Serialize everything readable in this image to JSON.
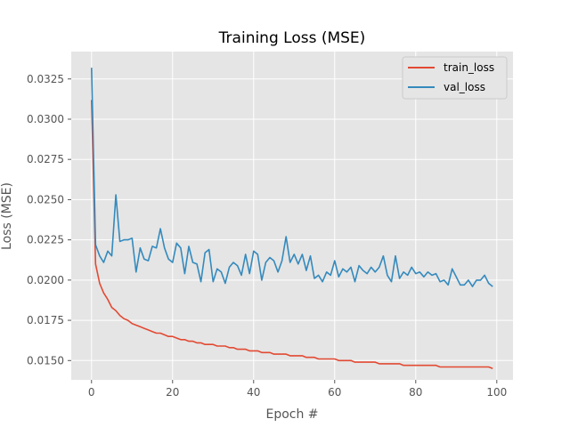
{
  "chart_data": {
    "type": "line",
    "title": "Training Loss (MSE)",
    "xlabel": "Epoch #",
    "ylabel": "Loss (MSE)",
    "xlim": [
      -5,
      104
    ],
    "ylim": [
      0.0138,
      0.0342
    ],
    "xticks": [
      0,
      20,
      40,
      60,
      80,
      100
    ],
    "yticks": [
      0.015,
      0.0175,
      0.02,
      0.0225,
      0.025,
      0.0275,
      0.03,
      0.0325
    ],
    "ytick_labels": [
      "0.0150",
      "0.0175",
      "0.0200",
      "0.0225",
      "0.0250",
      "0.0275",
      "0.0300",
      "0.0325"
    ],
    "grid": true,
    "legend_position": "top-right",
    "background": "#e5e5e5",
    "x": [
      0,
      1,
      2,
      3,
      4,
      5,
      6,
      7,
      8,
      9,
      10,
      11,
      12,
      13,
      14,
      15,
      16,
      17,
      18,
      19,
      20,
      21,
      22,
      23,
      24,
      25,
      26,
      27,
      28,
      29,
      30,
      31,
      32,
      33,
      34,
      35,
      36,
      37,
      38,
      39,
      40,
      41,
      42,
      43,
      44,
      45,
      46,
      47,
      48,
      49,
      50,
      51,
      52,
      53,
      54,
      55,
      56,
      57,
      58,
      59,
      60,
      61,
      62,
      63,
      64,
      65,
      66,
      67,
      68,
      69,
      70,
      71,
      72,
      73,
      74,
      75,
      76,
      77,
      78,
      79,
      80,
      81,
      82,
      83,
      84,
      85,
      86,
      87,
      88,
      89,
      90,
      91,
      92,
      93,
      94,
      95,
      96,
      97,
      98,
      99
    ],
    "series": [
      {
        "name": "train_loss",
        "color": "#e24a33",
        "values": [
          0.0312,
          0.021,
          0.0198,
          0.0192,
          0.0188,
          0.0183,
          0.0181,
          0.0178,
          0.0176,
          0.0175,
          0.0173,
          0.0172,
          0.0171,
          0.017,
          0.0169,
          0.0168,
          0.0167,
          0.0167,
          0.0166,
          0.0165,
          0.0165,
          0.0164,
          0.0163,
          0.0163,
          0.0162,
          0.0162,
          0.0161,
          0.0161,
          0.016,
          0.016,
          0.016,
          0.0159,
          0.0159,
          0.0159,
          0.0158,
          0.0158,
          0.0157,
          0.0157,
          0.0157,
          0.0156,
          0.0156,
          0.0156,
          0.0155,
          0.0155,
          0.0155,
          0.0154,
          0.0154,
          0.0154,
          0.0154,
          0.0153,
          0.0153,
          0.0153,
          0.0153,
          0.0152,
          0.0152,
          0.0152,
          0.0151,
          0.0151,
          0.0151,
          0.0151,
          0.0151,
          0.015,
          0.015,
          0.015,
          0.015,
          0.0149,
          0.0149,
          0.0149,
          0.0149,
          0.0149,
          0.0149,
          0.0148,
          0.0148,
          0.0148,
          0.0148,
          0.0148,
          0.0148,
          0.0147,
          0.0147,
          0.0147,
          0.0147,
          0.0147,
          0.0147,
          0.0147,
          0.0147,
          0.0147,
          0.0146,
          0.0146,
          0.0146,
          0.0146,
          0.0146,
          0.0146,
          0.0146,
          0.0146,
          0.0146,
          0.0146,
          0.0146,
          0.0146,
          0.0146,
          0.0145
        ]
      },
      {
        "name": "val_loss",
        "color": "#348abd",
        "values": [
          0.0332,
          0.0222,
          0.0215,
          0.0211,
          0.0218,
          0.0215,
          0.0253,
          0.0224,
          0.0225,
          0.0225,
          0.0226,
          0.0205,
          0.022,
          0.0213,
          0.0212,
          0.0221,
          0.022,
          0.0232,
          0.022,
          0.0213,
          0.0211,
          0.0223,
          0.022,
          0.0204,
          0.0221,
          0.0211,
          0.021,
          0.0199,
          0.0217,
          0.0219,
          0.0199,
          0.0207,
          0.0205,
          0.0198,
          0.0208,
          0.0211,
          0.0209,
          0.0203,
          0.0216,
          0.0204,
          0.0218,
          0.0216,
          0.02,
          0.0211,
          0.0214,
          0.0212,
          0.0205,
          0.0212,
          0.0227,
          0.0211,
          0.0216,
          0.021,
          0.0216,
          0.0206,
          0.0215,
          0.0201,
          0.0203,
          0.0199,
          0.0205,
          0.0203,
          0.0212,
          0.0202,
          0.0207,
          0.0205,
          0.0208,
          0.0199,
          0.0209,
          0.0206,
          0.0204,
          0.0208,
          0.0205,
          0.0208,
          0.0215,
          0.0203,
          0.0199,
          0.0215,
          0.0201,
          0.0205,
          0.0203,
          0.0208,
          0.0204,
          0.0205,
          0.0202,
          0.0205,
          0.0203,
          0.0204,
          0.0199,
          0.02,
          0.0197,
          0.0207,
          0.0202,
          0.0197,
          0.0197,
          0.02,
          0.0196,
          0.02,
          0.02,
          0.0203,
          0.0198,
          0.0196
        ]
      }
    ]
  }
}
